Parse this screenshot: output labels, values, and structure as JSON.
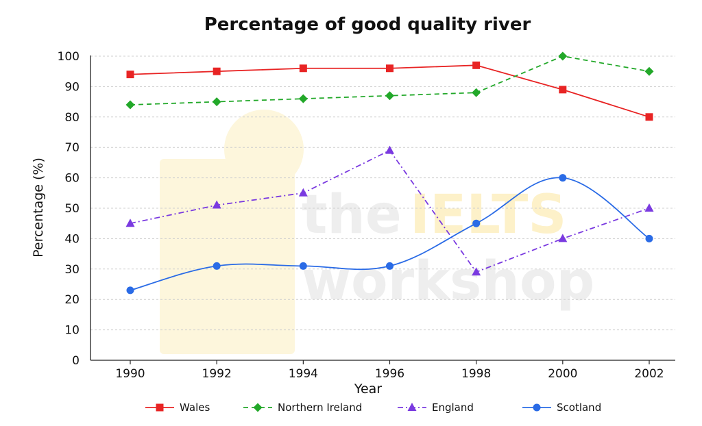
{
  "chart_data": {
    "type": "line",
    "title": "Percentage of good quality river",
    "xlabel": "Year",
    "ylabel": "Percentage (%)",
    "x": [
      "1990",
      "1992",
      "1994",
      "1996",
      "1998",
      "2000",
      "2002"
    ],
    "ylim": [
      0,
      100
    ],
    "yticks": [
      0,
      10,
      20,
      30,
      40,
      50,
      60,
      70,
      80,
      90,
      100
    ],
    "grid": true,
    "legend_position": "bottom",
    "series": [
      {
        "name": "Wales",
        "values": [
          94,
          95,
          96,
          96,
          97,
          89,
          80
        ],
        "color": "#e82424",
        "marker": "square",
        "line": "solid"
      },
      {
        "name": "Northern Ireland",
        "values": [
          84,
          85,
          86,
          87,
          88,
          100,
          95
        ],
        "color": "#22a829",
        "marker": "diamond",
        "line": "dashed"
      },
      {
        "name": "England",
        "values": [
          45,
          51,
          55,
          69,
          29,
          40,
          50
        ],
        "color": "#7a3ae0",
        "marker": "triangle",
        "line": "dashdot"
      },
      {
        "name": "Scotland",
        "values": [
          23,
          31,
          31,
          31,
          45,
          60,
          40
        ],
        "color": "#2a6be6",
        "marker": "circle",
        "line": "solid-smooth"
      }
    ]
  },
  "watermark": {
    "line1_a": "the",
    "line1_b": "IELTS",
    "line2": "workshop"
  }
}
